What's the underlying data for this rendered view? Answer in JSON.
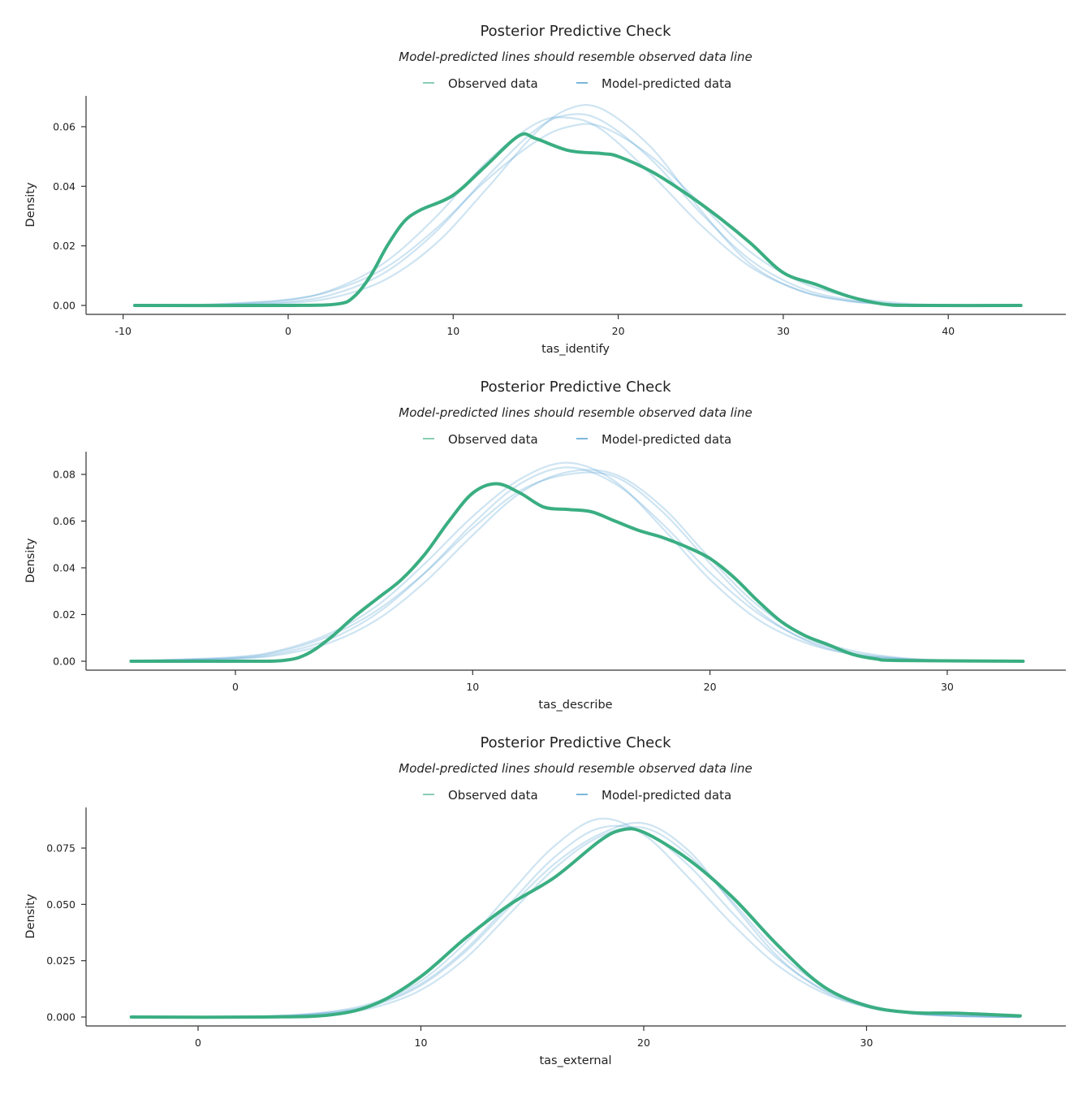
{
  "colors": {
    "observed": "#3aae82",
    "predicted": "#4f9fd0",
    "axis": "#333333"
  },
  "chart_data": [
    {
      "type": "line",
      "title": "Posterior Predictive Check",
      "subtitle": "Model-predicted lines should resemble observed data line",
      "xlabel": "tas_identify",
      "ylabel": "Density",
      "legend": {
        "position": "top-center",
        "entries": [
          "Observed data",
          "Model-predicted data"
        ]
      },
      "grid": false,
      "xlim": [
        -9.3,
        44.4
      ],
      "xticks": [
        -10,
        0,
        10,
        20,
        30,
        40
      ],
      "xtick_labels": [
        "-10",
        "0",
        "10",
        "20",
        "30",
        "40"
      ],
      "yticks": [
        0,
        0.02,
        0.04,
        0.06
      ],
      "ytick_labels": [
        "0.00",
        "0.02",
        "0.04",
        "0.06"
      ],
      "observed": {
        "x": [
          -9.3,
          0,
          3,
          4,
          5,
          6,
          7,
          8,
          10,
          12,
          14,
          15,
          17,
          19,
          20,
          22,
          24,
          26,
          28,
          30,
          32,
          34,
          36,
          38,
          44.4
        ],
        "y": [
          0,
          0,
          0.0005,
          0.003,
          0.01,
          0.02,
          0.028,
          0.032,
          0.037,
          0.047,
          0.057,
          0.056,
          0.052,
          0.051,
          0.05,
          0.045,
          0.038,
          0.03,
          0.021,
          0.011,
          0.007,
          0.003,
          0.0005,
          0,
          0
        ]
      },
      "predicted": {
        "x": [
          -9.3,
          -5,
          0,
          3,
          6,
          9,
          12,
          15,
          17,
          19,
          22,
          25,
          28,
          31,
          34,
          37,
          40,
          44.4
        ],
        "draws": [
          [
            0,
            0.0001,
            0.0012,
            0.0042,
            0.0115,
            0.025,
            0.043,
            0.059,
            0.064,
            0.062,
            0.049,
            0.031,
            0.0153,
            0.006,
            0.0019,
            0.0004,
            0,
            0
          ],
          [
            0,
            0.0001,
            0.0008,
            0.003,
            0.009,
            0.021,
            0.039,
            0.058,
            0.066,
            0.066,
            0.053,
            0.032,
            0.014,
            0.005,
            0.0014,
            0.0003,
            0,
            0
          ],
          [
            0,
            0.0003,
            0.002,
            0.0055,
            0.013,
            0.026,
            0.042,
            0.055,
            0.06,
            0.06,
            0.05,
            0.034,
            0.018,
            0.008,
            0.003,
            0.0008,
            0.0001,
            0
          ],
          [
            0,
            0.0002,
            0.0018,
            0.006,
            0.015,
            0.03,
            0.048,
            0.061,
            0.063,
            0.059,
            0.044,
            0.027,
            0.013,
            0.005,
            0.0015,
            0.0003,
            0,
            0
          ]
        ]
      }
    },
    {
      "type": "line",
      "title": "Posterior Predictive Check",
      "subtitle": "Model-predicted lines should resemble observed data line",
      "xlabel": "tas_describe",
      "ylabel": "Density",
      "legend": {
        "position": "top-center",
        "entries": [
          "Observed data",
          "Model-predicted data"
        ]
      },
      "grid": false,
      "xlim": [
        -4.4,
        33.2
      ],
      "xticks": [
        0,
        10,
        20,
        30
      ],
      "xtick_labels": [
        "0",
        "10",
        "20",
        "30"
      ],
      "yticks": [
        0,
        0.02,
        0.04,
        0.06,
        0.08
      ],
      "ytick_labels": [
        "0.00",
        "0.02",
        "0.04",
        "0.06",
        "0.08"
      ],
      "observed": {
        "x": [
          -4.4,
          0,
          2,
          3,
          4,
          5,
          6,
          7,
          8,
          9,
          10,
          11,
          12,
          13,
          14,
          15,
          16,
          17,
          18,
          19,
          20,
          21,
          22,
          23,
          24,
          25,
          26,
          27,
          28,
          33.2
        ],
        "y": [
          0,
          0,
          0.0003,
          0.003,
          0.01,
          0.019,
          0.027,
          0.035,
          0.046,
          0.06,
          0.072,
          0.076,
          0.072,
          0.066,
          0.065,
          0.064,
          0.06,
          0.056,
          0.053,
          0.049,
          0.044,
          0.036,
          0.026,
          0.017,
          0.011,
          0.007,
          0.003,
          0.001,
          0.0003,
          0
        ]
      },
      "predicted": {
        "x": [
          -4.4,
          0,
          2,
          4,
          6,
          8,
          10,
          12,
          14,
          16,
          18,
          20,
          22,
          24,
          26,
          28,
          30,
          33.2
        ],
        "draws": [
          [
            0.0001,
            0.0012,
            0.0037,
            0.0095,
            0.0207,
            0.038,
            0.0588,
            0.076,
            0.083,
            0.076,
            0.0588,
            0.038,
            0.0207,
            0.0095,
            0.0037,
            0.0012,
            0.0003,
            0
          ],
          [
            0.0001,
            0.0015,
            0.0045,
            0.011,
            0.022,
            0.038,
            0.057,
            0.073,
            0.08,
            0.079,
            0.064,
            0.042,
            0.022,
            0.009,
            0.003,
            0.0009,
            0.0002,
            0
          ],
          [
            0.0002,
            0.0018,
            0.005,
            0.012,
            0.024,
            0.042,
            0.062,
            0.078,
            0.085,
            0.077,
            0.057,
            0.035,
            0.018,
            0.008,
            0.003,
            0.001,
            0.0003,
            0
          ],
          [
            0.0001,
            0.001,
            0.003,
            0.008,
            0.018,
            0.034,
            0.054,
            0.072,
            0.081,
            0.08,
            0.066,
            0.044,
            0.024,
            0.011,
            0.0045,
            0.0015,
            0.0004,
            0
          ]
        ]
      }
    },
    {
      "type": "line",
      "title": "Posterior Predictive Check",
      "subtitle": "Model-predicted lines should resemble observed data line",
      "xlabel": "tas_external",
      "ylabel": "Density",
      "legend": {
        "position": "top-center",
        "entries": [
          "Observed data",
          "Model-predicted data"
        ]
      },
      "grid": false,
      "xlim": [
        -3,
        36.9
      ],
      "xticks": [
        0,
        10,
        20,
        30
      ],
      "xtick_labels": [
        "0",
        "10",
        "20",
        "30"
      ],
      "yticks": [
        0,
        0.025,
        0.05,
        0.075
      ],
      "ytick_labels": [
        "0.000",
        "0.025",
        "0.050",
        "0.075"
      ],
      "observed": {
        "x": [
          -3,
          3,
          6,
          8,
          10,
          12,
          14,
          16,
          18,
          19,
          20,
          22,
          24,
          26,
          28,
          30,
          32,
          34,
          36.9
        ],
        "y": [
          0,
          0,
          0.001,
          0.006,
          0.018,
          0.035,
          0.05,
          0.062,
          0.078,
          0.083,
          0.082,
          0.07,
          0.053,
          0.032,
          0.014,
          0.005,
          0.002,
          0.0017,
          0.0005
        ]
      },
      "predicted": {
        "x": [
          -3,
          3,
          6,
          8,
          10,
          12,
          14,
          16,
          18,
          20,
          22,
          24,
          26,
          28,
          30,
          32,
          34,
          36.9
        ],
        "draws": [
          [
            0,
            0.0003,
            0.0021,
            0.006,
            0.0147,
            0.03,
            0.0505,
            0.071,
            0.0838,
            0.0823,
            0.0674,
            0.046,
            0.026,
            0.0125,
            0.005,
            0.0017,
            0.0005,
            0
          ],
          [
            0,
            0.0004,
            0.0025,
            0.0068,
            0.016,
            0.033,
            0.055,
            0.076,
            0.088,
            0.081,
            0.062,
            0.041,
            0.023,
            0.011,
            0.0045,
            0.0016,
            0.0005,
            0
          ],
          [
            0,
            0.0002,
            0.0015,
            0.0045,
            0.012,
            0.026,
            0.046,
            0.066,
            0.08,
            0.084,
            0.072,
            0.051,
            0.029,
            0.014,
            0.0055,
            0.002,
            0.0006,
            0
          ],
          [
            0,
            0.0003,
            0.002,
            0.0055,
            0.014,
            0.029,
            0.049,
            0.068,
            0.081,
            0.086,
            0.074,
            0.05,
            0.027,
            0.012,
            0.0045,
            0.0015,
            0.0004,
            0
          ]
        ]
      }
    }
  ]
}
